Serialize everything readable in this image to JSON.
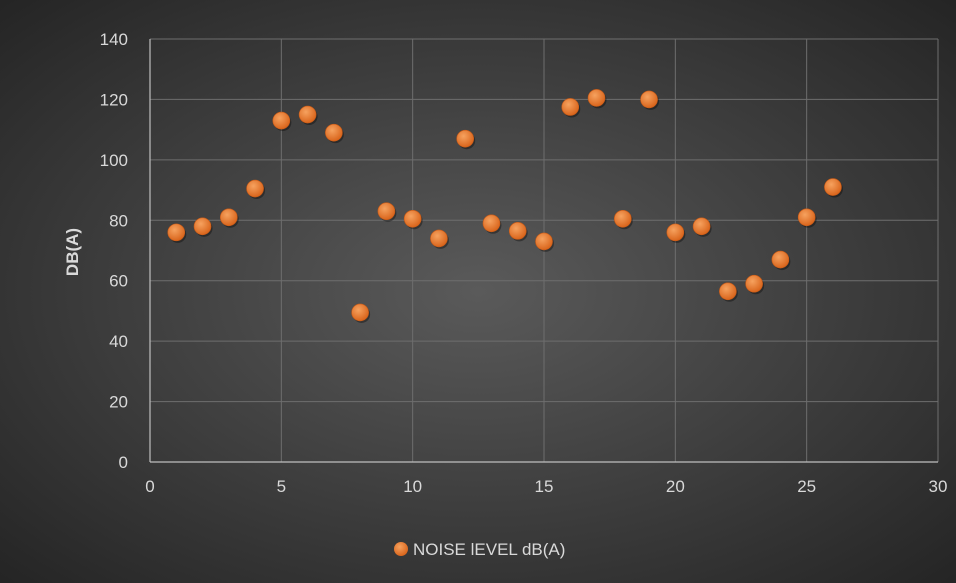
{
  "chart_data": {
    "type": "scatter",
    "title": "",
    "xlabel": "",
    "ylabel": "DB(A)",
    "xlim": [
      0,
      30
    ],
    "ylim": [
      0,
      140
    ],
    "xticks": [
      0,
      5,
      10,
      15,
      20,
      25,
      30
    ],
    "yticks": [
      0,
      20,
      40,
      60,
      80,
      100,
      120,
      140
    ],
    "grid": true,
    "legend_position": "bottom",
    "series": [
      {
        "name": "NOISE lEVEL dB(A)",
        "color": "#ED7D31",
        "x": [
          1,
          2,
          3,
          4,
          5,
          6,
          7,
          8,
          9,
          10,
          11,
          12,
          13,
          14,
          15,
          16,
          17,
          18,
          19,
          20,
          21,
          22,
          23,
          24,
          25,
          26
        ],
        "y": [
          76,
          78,
          81,
          90.5,
          113,
          115,
          109,
          49.5,
          83,
          80.5,
          74,
          107,
          79,
          76.5,
          73,
          117.5,
          120.5,
          80.5,
          120,
          76,
          78,
          56.5,
          59,
          67,
          81,
          91
        ]
      }
    ]
  },
  "colors": {
    "background_center": "#595959",
    "background_edge": "#262626",
    "gridline": "#6e6e6e",
    "axis_line": "#bfbfbf",
    "text": "#d9d9d9",
    "marker": "#ED7D31"
  }
}
